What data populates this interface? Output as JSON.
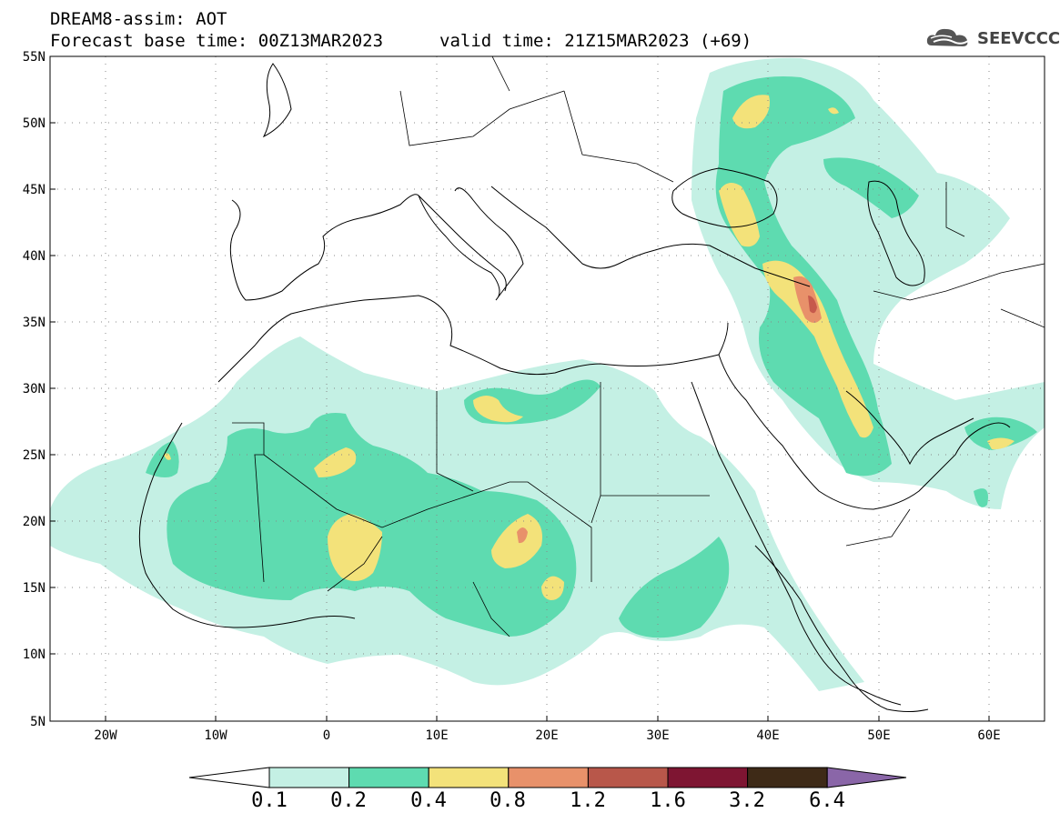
{
  "header": {
    "title_line1": "DREAM8-assim: AOT",
    "title_line2": "Forecast base time: 00Z13MAR2023",
    "title_line2b": "valid time: 21Z15MAR2023 (+69)",
    "logo_text": "SEEVCCC",
    "logo_icon": "cloud-logo-icon"
  },
  "map": {
    "lon_range": [
      -25,
      65
    ],
    "lat_range": [
      5,
      55
    ],
    "lat_ticks": [
      "55N",
      "50N",
      "45N",
      "40N",
      "35N",
      "30N",
      "25N",
      "20N",
      "15N",
      "10N",
      "5N"
    ],
    "lon_ticks": [
      "20W",
      "10W",
      "0",
      "10E",
      "20E",
      "30E",
      "40E",
      "50E",
      "60E"
    ],
    "grid": "dotted"
  },
  "legend": {
    "labels": [
      "0.1",
      "0.2",
      "0.4",
      "0.8",
      "1.2",
      "1.6",
      "3.2",
      "6.4"
    ],
    "colors": [
      "#ffffff",
      "#c4f0e4",
      "#5edbb0",
      "#f3e27a",
      "#e8916a",
      "#b8574a",
      "#7e1532",
      "#3e2a17",
      "#8a66a8"
    ]
  },
  "colors": {
    "aot_01_02": "#c4f0e4",
    "aot_02_04": "#5edbb0",
    "aot_04_08": "#f3e27a",
    "aot_08_12": "#e8916a",
    "aot_12_16": "#c65a4c"
  }
}
